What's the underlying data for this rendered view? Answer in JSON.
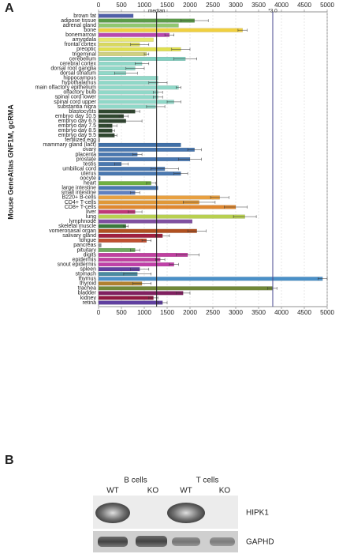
{
  "panels": [
    "A",
    "B"
  ],
  "chart_data": {
    "type": "bar",
    "orientation": "horizontal",
    "ylabel": "Mouse GeneAtlas GNF1M, gcRMA",
    "categories": [
      "brown fat",
      "adipose tissue",
      "adrenal gland",
      "bone",
      "bonemarrow",
      "amygdala",
      "frontal cortex",
      "preoptic",
      "trigeminal",
      "cerebellum",
      "cerebral cortex",
      "dorsal root ganglia",
      "dorsal striatum",
      "hippocampus",
      "hypothalamus",
      "main olfactory epithelium",
      "olfactory bulb",
      "spinal cord lower",
      "spinal cord upper",
      "substantia nigra",
      "blastocysts",
      "embryo day 10.5",
      "embryo day 6.5",
      "embryo day 7.5",
      "embryo day 8.5",
      "embryo day 9.5",
      "fertilized egg",
      "mammary gland (lact)",
      "ovary",
      "placenta",
      "prostate",
      "testis",
      "umbilical cord",
      "uterus",
      "oocyte",
      "heart",
      "large intestine",
      "small intestine",
      "B220+ B-cells",
      "CD4+ T-cells",
      "CD8+ T-cells",
      "liver",
      "lung",
      "lymphnode",
      "skeletal muscle",
      "vomeronasal organ",
      "salivary gland",
      "tongue",
      "pancreas",
      "pituitary",
      "digits",
      "epidermis",
      "snout epidermis",
      "spleen",
      "stomach",
      "thymus",
      "thyroid",
      "trachea",
      "bladder",
      "kidney",
      "retina"
    ],
    "values": [
      760,
      2100,
      1750,
      3150,
      1550,
      1200,
      900,
      1800,
      1050,
      1900,
      950,
      800,
      600,
      1300,
      1300,
      1750,
      1300,
      1300,
      1650,
      1250,
      800,
      550,
      600,
      300,
      300,
      350,
      30,
      1800,
      2100,
      850,
      2000,
      500,
      1450,
      1800,
      40,
      1150,
      1300,
      800,
      2650,
      2200,
      3000,
      800,
      3200,
      2050,
      600,
      2150,
      1400,
      1050,
      60,
      800,
      1950,
      1350,
      1650,
      900,
      850,
      4900,
      950,
      3800,
      1850,
      1200,
      1400
    ],
    "errors": [
      0,
      300,
      0,
      100,
      100,
      0,
      200,
      200,
      50,
      250,
      150,
      200,
      250,
      0,
      200,
      50,
      100,
      100,
      150,
      200,
      100,
      100,
      350,
      100,
      50,
      50,
      0,
      0,
      150,
      100,
      250,
      150,
      300,
      150,
      0,
      100,
      0,
      100,
      200,
      350,
      250,
      150,
      250,
      0,
      50,
      200,
      150,
      100,
      0,
      100,
      250,
      100,
      100,
      200,
      300,
      100,
      200,
      100,
      150,
      100,
      100
    ],
    "colors": [
      "#5060a8",
      "#5a9a48",
      "#90c870",
      "#f0d040",
      "#b848b0",
      "#e8e870",
      "#d8d860",
      "#e0e050",
      "#d0d080",
      "#80d0c0",
      "#90d8c8",
      "#90d8c8",
      "#90d8c8",
      "#90d8c8",
      "#90d8c8",
      "#90d8c8",
      "#90d8c8",
      "#90d8c8",
      "#90d8c8",
      "#90d8c8",
      "#304830",
      "#304830",
      "#304830",
      "#304830",
      "#304830",
      "#304830",
      "#909090",
      "#4070a8",
      "#4a78b0",
      "#4a78b0",
      "#4a78b0",
      "#4a78b0",
      "#4a78b0",
      "#4a78b0",
      "#4a78b0",
      "#70b040",
      "#4a78b0",
      "#6080c0",
      "#e8a040",
      "#e09838",
      "#e08830",
      "#c03878",
      "#b8d050",
      "#8050a0",
      "#3a7a3a",
      "#b05020",
      "#a02040",
      "#c05030",
      "#909090",
      "#70a860",
      "#c040a0",
      "#c040a0",
      "#c040a8",
      "#6040a0",
      "#4a8aa0",
      "#4a90c8",
      "#b08030",
      "#708838",
      "#802060",
      "#901840",
      "#6040a0"
    ],
    "xlim": [
      0,
      5000
    ],
    "xticks": [
      0,
      500,
      1000,
      1500,
      2000,
      2500,
      3000,
      3500,
      4000,
      4500,
      5000
    ],
    "grid": true,
    "reference_lines": [
      {
        "label": "median",
        "value": 1270
      },
      {
        "label": "*3.0",
        "value": 3810
      }
    ]
  },
  "panel_b": {
    "groups": [
      "B cells",
      "T cells"
    ],
    "lanes": [
      "WT",
      "KO",
      "WT",
      "KO"
    ],
    "bands": [
      "HIPK1",
      "GAPHD"
    ]
  }
}
